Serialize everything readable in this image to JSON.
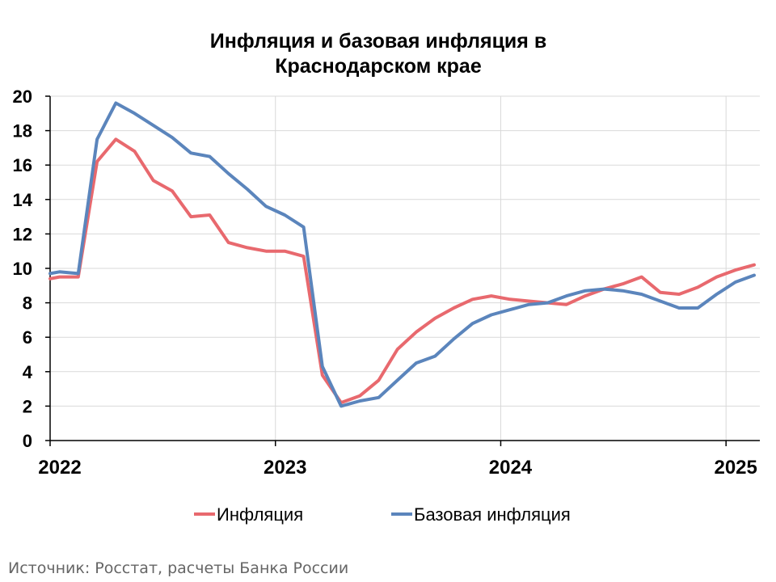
{
  "chart_data": {
    "type": "line",
    "title_line1": "Инфляция и базовая инфляция в",
    "title_line2": "Краснодарском крае",
    "xlabel": "",
    "ylabel": "",
    "ylim": [
      0,
      20
    ],
    "yticks": [
      "0",
      "2",
      "4",
      "6",
      "8",
      "10",
      "12",
      "14",
      "16",
      "18",
      "20"
    ],
    "xticks": [
      {
        "label": "2022",
        "value": 0
      },
      {
        "label": "2023",
        "value": 12
      },
      {
        "label": "2024",
        "value": 24
      },
      {
        "label": "2025",
        "value": 36
      }
    ],
    "xlim": [
      0,
      37.8
    ],
    "grid": true,
    "legend_position": "bottom",
    "series": [
      {
        "name": "Инфляция",
        "color": "#e8696e",
        "x": [
          0,
          0.5,
          1.5,
          2.5,
          3.5,
          4.5,
          5.5,
          6.5,
          7.5,
          8.5,
          9.5,
          10.5,
          11.5,
          12.5,
          13.5,
          14.5,
          15.5,
          16.5,
          17.5,
          18.5,
          19.5,
          20.5,
          21.5,
          22.5,
          23.5,
          24.5,
          25.5,
          26.5,
          27.5,
          28.5,
          29.5,
          30.5,
          31.5,
          32.5,
          33.5,
          34.5,
          35.5,
          36.5,
          37.5
        ],
        "y": [
          9.4,
          9.5,
          9.5,
          16.2,
          17.5,
          16.8,
          15.1,
          14.5,
          13.0,
          13.1,
          11.5,
          11.2,
          11.0,
          11.0,
          10.7,
          3.8,
          2.2,
          2.6,
          3.5,
          5.3,
          6.3,
          7.1,
          7.7,
          8.2,
          8.4,
          8.2,
          8.1,
          8.0,
          7.9,
          8.4,
          8.8,
          9.1,
          9.5,
          8.6,
          8.5,
          8.9,
          9.5,
          9.9,
          10.2
        ]
      },
      {
        "name": "Базовая инфляция",
        "color": "#5b85bc",
        "x": [
          0,
          0.5,
          1.5,
          2.5,
          3.5,
          4.5,
          5.5,
          6.5,
          7.5,
          8.5,
          9.5,
          10.5,
          11.5,
          12.5,
          13.5,
          14.5,
          15.5,
          16.5,
          17.5,
          18.5,
          19.5,
          20.5,
          21.5,
          22.5,
          23.5,
          24.5,
          25.5,
          26.5,
          27.5,
          28.5,
          29.5,
          30.5,
          31.5,
          32.5,
          33.5,
          34.5,
          35.5,
          36.5,
          37.5
        ],
        "y": [
          9.7,
          9.8,
          9.7,
          17.5,
          19.6,
          19.0,
          18.3,
          17.6,
          16.7,
          16.5,
          15.5,
          14.6,
          13.6,
          13.1,
          12.4,
          4.3,
          2.0,
          2.3,
          2.5,
          3.5,
          4.5,
          4.9,
          5.9,
          6.8,
          7.3,
          7.6,
          7.9,
          8.0,
          8.4,
          8.7,
          8.8,
          8.7,
          8.5,
          8.1,
          7.7,
          7.7,
          8.5,
          9.2,
          9.6
        ]
      }
    ]
  },
  "source_text": "Источник: Росстат, расчеты Банка России"
}
